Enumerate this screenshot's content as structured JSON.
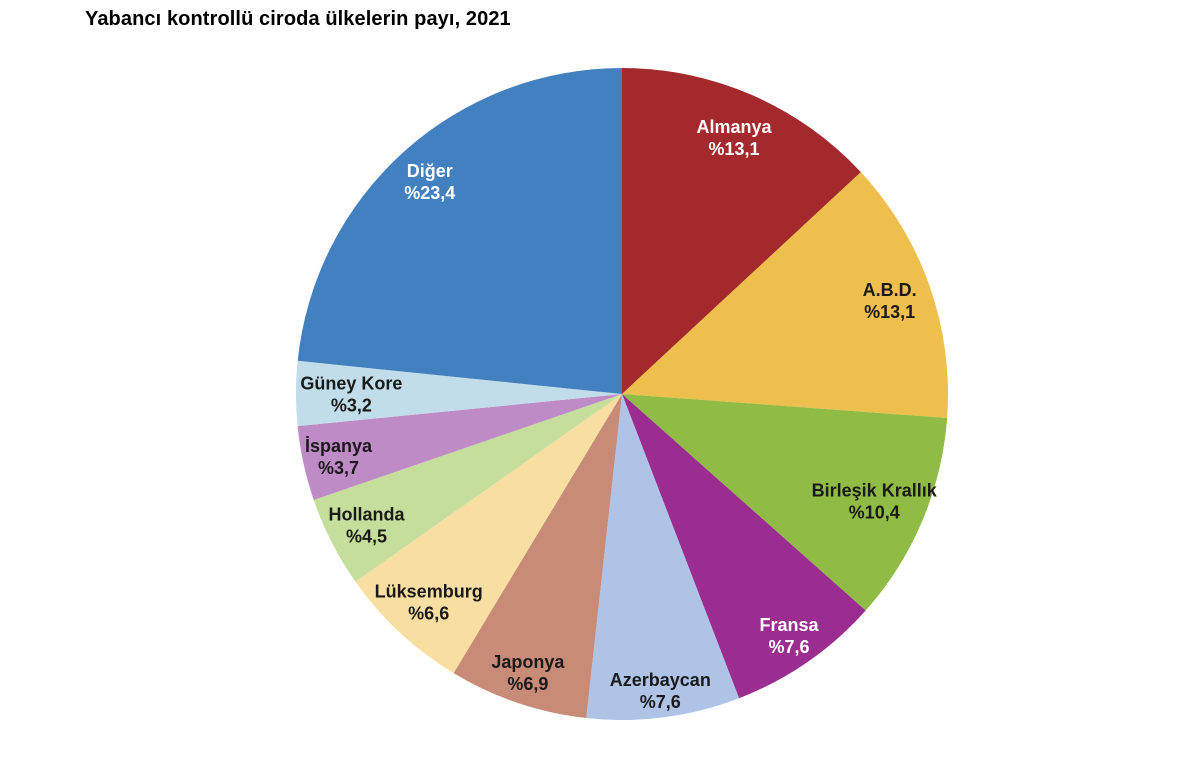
{
  "title": "Yabancı kontrollü ciroda ülkelerin payı, 2021",
  "chart_data": {
    "type": "pie",
    "title": "Yabancı kontrollü ciroda ülkelerin payı, 2021",
    "start_angle_deg": 0,
    "direction": "clockwise",
    "value_format": "percent_comma_decimal_prefix",
    "legend": "none",
    "label_position": "inside",
    "label_colors": {
      "dark": "#1a1a1a",
      "light": "#ffffff"
    },
    "slices": [
      {
        "label": "Almanya",
        "value": 13.1,
        "display_value": "%13,1",
        "color": "#a3292c",
        "label_color": "#ffffff",
        "label_r": 0.86
      },
      {
        "label": "A.B.D.",
        "value": 13.1,
        "display_value": "%13,1",
        "color": "#efbf4d",
        "label_color": "#1a1a1a",
        "label_r": 0.87
      },
      {
        "label": "Birleşik Krallık",
        "value": 10.4,
        "display_value": "%10,4",
        "color": "#90bc46",
        "label_color": "#1a1a1a",
        "label_r": 0.84
      },
      {
        "label": "Fransa",
        "value": 7.6,
        "display_value": "%7,6",
        "color": "#9b2d90",
        "label_color": "#ffffff",
        "label_r": 0.9
      },
      {
        "label": "Azerbaycan",
        "value": 7.6,
        "display_value": "%7,6",
        "color": "#afc3e6",
        "label_color": "#1a1a1a",
        "label_r": 0.915
      },
      {
        "label": "Japonya",
        "value": 6.9,
        "display_value": "%6,9",
        "color": "#c88b77",
        "label_color": "#1a1a1a",
        "label_r": 0.9
      },
      {
        "label": "Lüksemburg",
        "value": 6.6,
        "display_value": "%6,6",
        "color": "#f8dfa1",
        "label_color": "#1a1a1a",
        "label_r": 0.87
      },
      {
        "label": "Hollanda",
        "value": 4.5,
        "display_value": "%4,5",
        "color": "#c5de9b",
        "label_color": "#1a1a1a",
        "label_r": 0.88
      },
      {
        "label": "İspanya",
        "value": 3.7,
        "display_value": "%3,7",
        "color": "#bf8bc7",
        "label_color": "#1a1a1a",
        "label_r": 0.89
      },
      {
        "label": "Güney Kore",
        "value": 3.2,
        "display_value": "%3,2",
        "color": "#c1dde9",
        "label_color": "#1a1a1a",
        "label_r": 0.83
      },
      {
        "label": "Diğer",
        "value": 23.4,
        "display_value": "%23,4",
        "color": "#4380bf",
        "label_color": "#ffffff",
        "label_r": 0.88
      }
    ]
  }
}
